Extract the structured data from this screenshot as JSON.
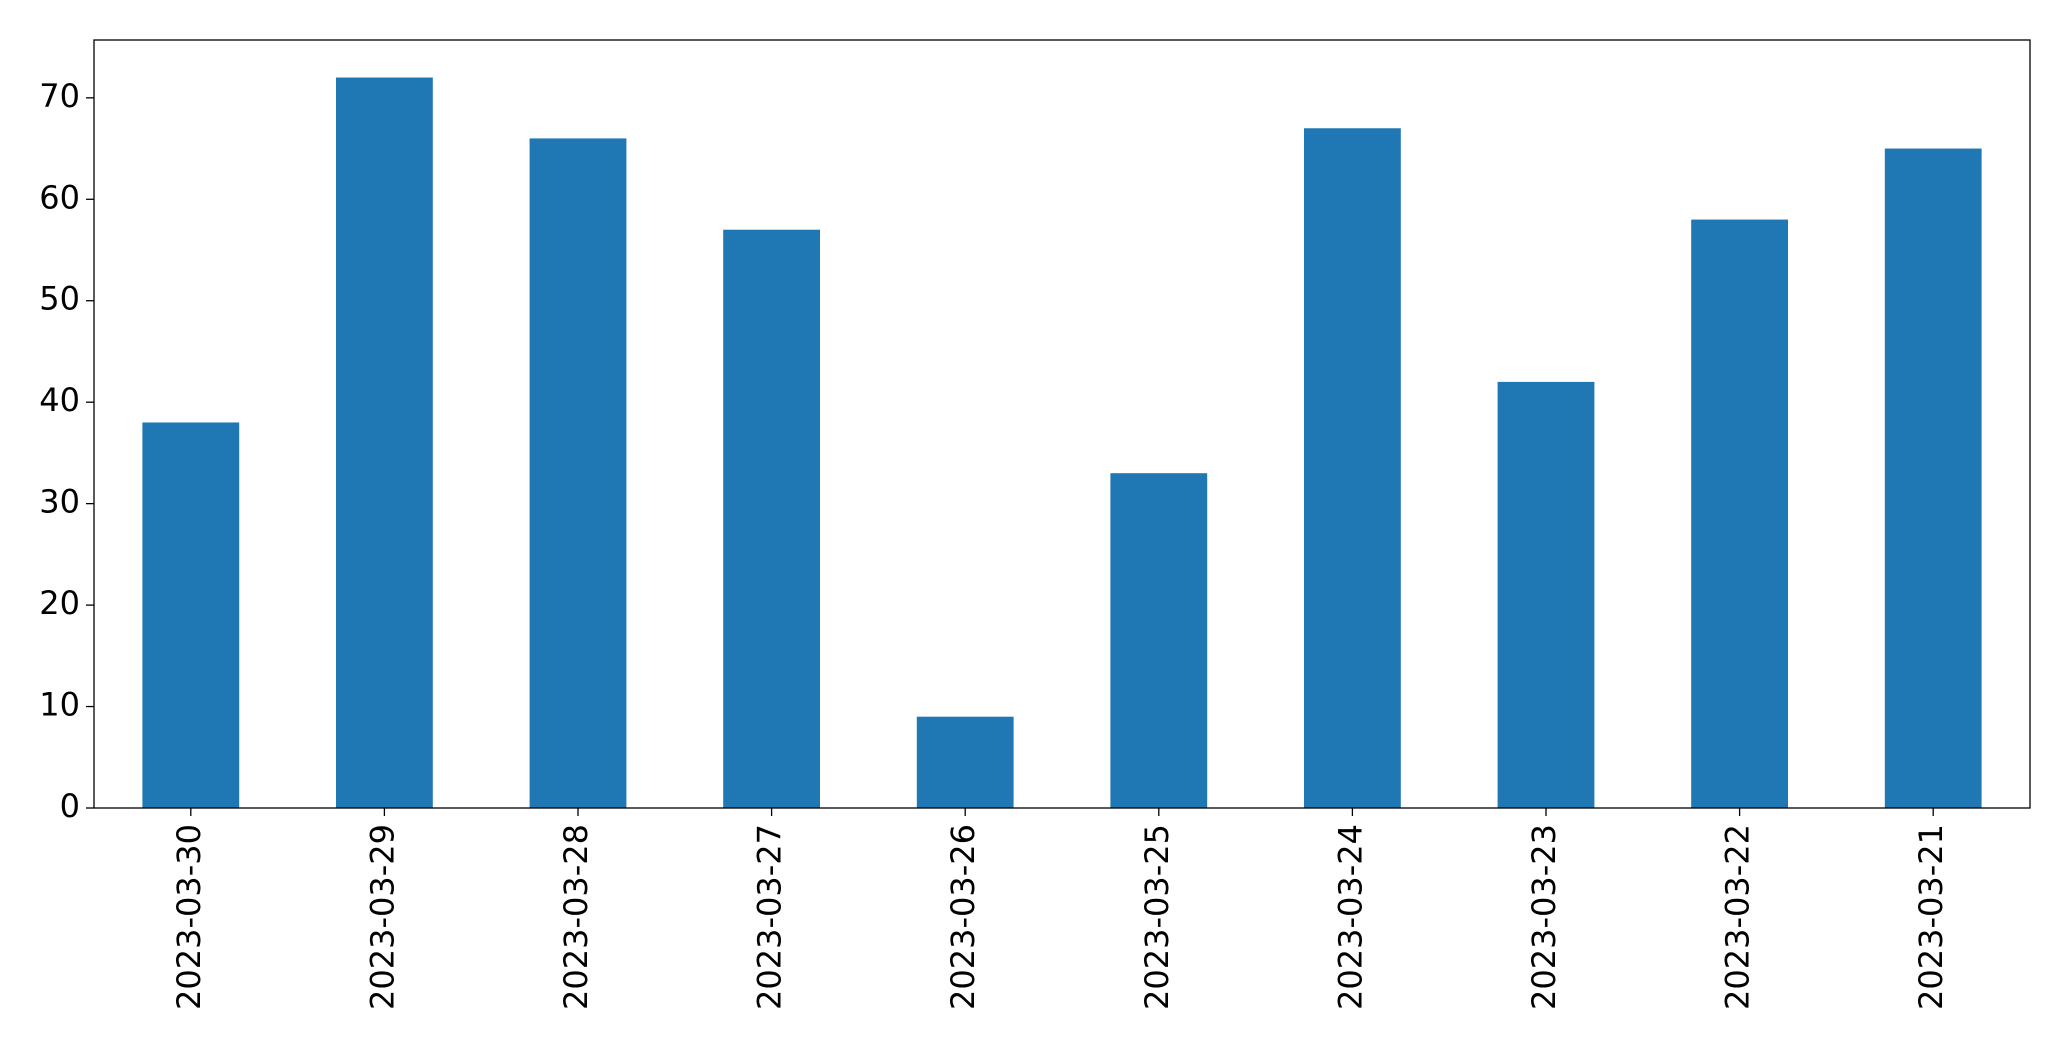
{
  "chart_data": {
    "type": "bar",
    "categories": [
      "2023-03-30",
      "2023-03-29",
      "2023-03-28",
      "2023-03-27",
      "2023-03-26",
      "2023-03-25",
      "2023-03-24",
      "2023-03-23",
      "2023-03-22",
      "2023-03-21"
    ],
    "values": [
      38,
      72,
      66,
      57,
      9,
      33,
      67,
      42,
      58,
      65
    ],
    "color": "#1f77b4",
    "ylim": [
      0,
      75.7
    ],
    "yticks": [
      0,
      10,
      20,
      30,
      40,
      50,
      60,
      70
    ],
    "grid": false
  }
}
